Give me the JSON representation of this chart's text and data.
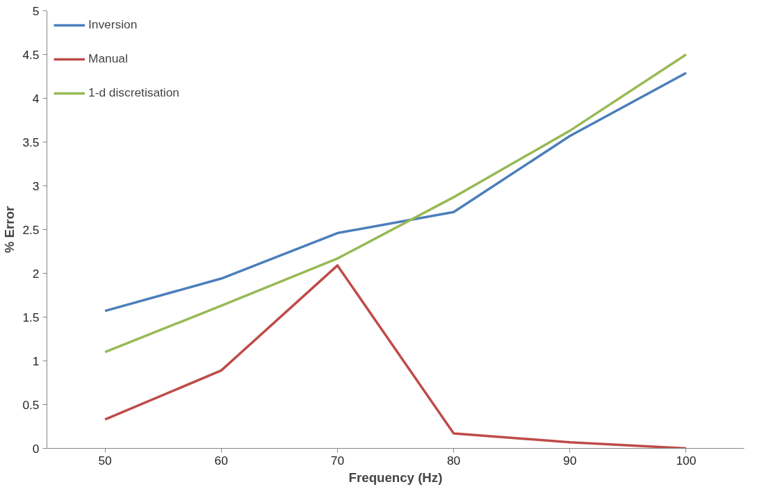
{
  "chart_data": {
    "type": "line",
    "xlabel": "Frequency (Hz)",
    "ylabel": "% Error",
    "categories": [
      "50",
      "60",
      "70",
      "80",
      "90",
      "100"
    ],
    "series": [
      {
        "name": "Inversion",
        "color": "#4a7ebb",
        "values": [
          1.57,
          1.94,
          2.46,
          2.7,
          3.57,
          4.29
        ]
      },
      {
        "name": "Manual",
        "color": "#be4b48",
        "values": [
          0.33,
          0.89,
          2.09,
          0.17,
          0.07,
          0
        ]
      },
      {
        "name": "1-d discretisation",
        "color": "#98b954",
        "values": [
          1.1,
          1.63,
          2.17,
          2.87,
          3.63,
          4.5
        ]
      }
    ],
    "ylim": [
      0,
      5
    ],
    "yticks": [
      0,
      0.5,
      1,
      1.5,
      2,
      2.5,
      3,
      3.5,
      4,
      4.5,
      5
    ],
    "grid": false,
    "legend": "top left",
    "marker": "none",
    "line_style": "solid"
  }
}
